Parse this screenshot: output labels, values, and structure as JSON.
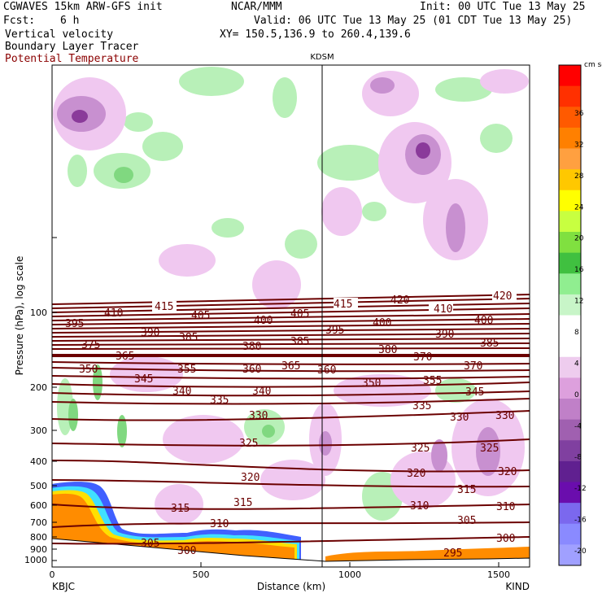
{
  "header": {
    "model": "CGWAVES 15km ARW-GFS init",
    "org": "NCAR/MMM",
    "init": "Init: 00 UTC Tue 13 May 25",
    "fcst_label": "Fcst:",
    "fcst_value": "6 h",
    "valid": "Valid: 06 UTC Tue 13 May 25 (01 CDT Tue 13 May 25)",
    "field1": "Vertical velocity",
    "field2": "Boundary Layer Tracer",
    "field3": "Potential Temperature",
    "xy": "XY= 150.5,136.9 to 260.4,139.6"
  },
  "chart_data": {
    "type": "heatmap",
    "subtype": "vertical cross-section with contours",
    "station_marker": "KDSM",
    "xlabel": "Distance (km)",
    "ylabel": "Pressure (hPa), log scale",
    "xlim": [
      0,
      1600
    ],
    "ylim": [
      1000,
      50
    ],
    "y_scale": "log",
    "x_ticks": [
      "0",
      "500",
      "1000",
      "1500"
    ],
    "y_ticks": [
      "100",
      "200",
      "300",
      "400",
      "500",
      "600",
      "700",
      "800",
      "900",
      "1000"
    ],
    "left_station": "KBJC",
    "right_station": "KIND",
    "colorbar": {
      "unit": "cm s-1",
      "labels": [
        "36",
        "32",
        "28",
        "24",
        "20",
        "16",
        "12",
        "8",
        "4",
        "0",
        "-4",
        "-8",
        "-12",
        "-16",
        "-20"
      ],
      "colors": [
        "#ff0000",
        "#ff3000",
        "#ff5a00",
        "#ff8000",
        "#ffa040",
        "#ffc800",
        "#ffff00",
        "#c8ff40",
        "#80e040",
        "#40c040",
        "#90ee90",
        "#c8f5c8",
        "#ffffff",
        "#ffffff",
        "#eeccee",
        "#dda0dd",
        "#c080c8",
        "#a060b0",
        "#8040a0",
        "#602090",
        "#6a0dad",
        "#7b68ee",
        "#8a8aff",
        "#a0a0ff"
      ]
    },
    "theta_contour_labels": [
      "420",
      "415",
      "410",
      "405",
      "400",
      "395",
      "390",
      "385",
      "380",
      "375",
      "370",
      "365",
      "360",
      "355",
      "350",
      "345",
      "340",
      "335",
      "330",
      "325",
      "320",
      "315",
      "310",
      "305",
      "300",
      "295"
    ],
    "theta_contour_levels_K": [
      295,
      300,
      305,
      310,
      315,
      320,
      325,
      330,
      335,
      340,
      345,
      350,
      355,
      360,
      365,
      370,
      375,
      380,
      385,
      390,
      395,
      400,
      405,
      410,
      415,
      420
    ]
  }
}
